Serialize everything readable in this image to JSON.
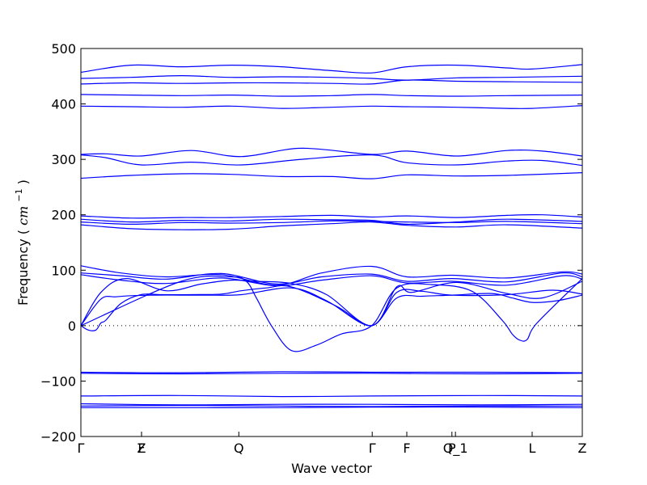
{
  "chart_data": {
    "type": "line",
    "title": "",
    "xlabel": "Wave vector",
    "ylabel": "Frequency ( cm⁻¹ )",
    "ylabel_parts": {
      "text": "Frequency (",
      "unit_base": "cm",
      "unit_sup": "−1",
      "close": ")"
    },
    "ylim": [
      -200,
      500
    ],
    "yticks": [
      -200,
      -100,
      0,
      100,
      200,
      300,
      400,
      500
    ],
    "xlim": [
      0,
      1.0
    ],
    "x_points": [
      {
        "label": "Γ",
        "x": 0.0
      },
      {
        "label": "Z",
        "x": 0.121
      },
      {
        "label": "F",
        "x": 0.121
      },
      {
        "label": "Q",
        "x": 0.315
      },
      {
        "label": "Γ",
        "x": 0.581
      },
      {
        "label": "F",
        "x": 0.65
      },
      {
        "label": "P",
        "x": 0.74
      },
      {
        "label": "Q_1",
        "x": 0.747
      },
      {
        "label": "L",
        "x": 0.9
      },
      {
        "label": "Z",
        "x": 1.0
      }
    ],
    "zero_line": true,
    "grid": false,
    "line_color": "#0000ff",
    "series": [
      {
        "x": [
          0,
          0.1,
          0.2,
          0.3,
          0.4,
          0.5,
          0.58,
          0.65,
          0.75,
          0.85,
          0.9,
          1.0
        ],
        "values": [
          457,
          470,
          467,
          470,
          467,
          460,
          456,
          467,
          470,
          465,
          463,
          471
        ]
      },
      {
        "x": [
          0,
          0.1,
          0.2,
          0.3,
          0.4,
          0.5,
          0.58,
          0.65,
          0.75,
          0.85,
          1.0
        ],
        "values": [
          446,
          448,
          451,
          448,
          449,
          448,
          446,
          443,
          447,
          448,
          450
        ]
      },
      {
        "x": [
          0,
          0.1,
          0.2,
          0.3,
          0.4,
          0.5,
          0.58,
          0.65,
          0.75,
          0.85,
          1.0
        ],
        "values": [
          436,
          438,
          437,
          438,
          438,
          437,
          436,
          443,
          441,
          440,
          439
        ]
      },
      {
        "x": [
          0,
          0.1,
          0.2,
          0.3,
          0.4,
          0.5,
          0.58,
          0.65,
          0.75,
          0.85,
          1.0
        ],
        "values": [
          417,
          416,
          415,
          416,
          414,
          415,
          417,
          415,
          414,
          415,
          416
        ]
      },
      {
        "x": [
          0,
          0.1,
          0.2,
          0.3,
          0.4,
          0.5,
          0.58,
          0.65,
          0.75,
          0.85,
          0.9,
          1.0
        ],
        "values": [
          396,
          395,
          394,
          396,
          392,
          394,
          396,
          395,
          394,
          392,
          392,
          397
        ]
      },
      {
        "x": [
          0,
          0.05,
          0.12,
          0.22,
          0.32,
          0.44,
          0.58,
          0.65,
          0.75,
          0.85,
          0.92,
          1.0
        ],
        "values": [
          309,
          310,
          306,
          316,
          305,
          320,
          309,
          315,
          306,
          316,
          315,
          306
        ]
      },
      {
        "x": [
          0,
          0.05,
          0.12,
          0.22,
          0.32,
          0.44,
          0.58,
          0.65,
          0.75,
          0.85,
          0.92,
          1.0
        ],
        "values": [
          308,
          303,
          290,
          295,
          290,
          300,
          308,
          294,
          290,
          297,
          298,
          289
        ]
      },
      {
        "x": [
          0,
          0.1,
          0.2,
          0.3,
          0.4,
          0.5,
          0.58,
          0.65,
          0.75,
          0.85,
          1.0
        ],
        "values": [
          266,
          271,
          274,
          273,
          269,
          269,
          265,
          272,
          270,
          271,
          276
        ]
      },
      {
        "x": [
          0,
          0.1,
          0.2,
          0.3,
          0.4,
          0.5,
          0.58,
          0.65,
          0.75,
          0.85,
          0.92,
          1.0
        ],
        "values": [
          198,
          194,
          195,
          195,
          197,
          199,
          196,
          198,
          195,
          199,
          200,
          196
        ]
      },
      {
        "x": [
          0,
          0.1,
          0.2,
          0.3,
          0.4,
          0.5,
          0.58,
          0.65,
          0.75,
          0.85,
          1.0
        ],
        "values": [
          192,
          187,
          190,
          189,
          192,
          191,
          190,
          183,
          187,
          192,
          188
        ]
      },
      {
        "x": [
          0,
          0.1,
          0.2,
          0.3,
          0.4,
          0.5,
          0.58,
          0.65,
          0.75,
          0.85,
          1.0
        ],
        "values": [
          187,
          183,
          186,
          185,
          186,
          189,
          188,
          187,
          186,
          188,
          184
        ]
      },
      {
        "x": [
          0,
          0.1,
          0.2,
          0.3,
          0.4,
          0.5,
          0.58,
          0.65,
          0.75,
          0.85,
          1.0
        ],
        "values": [
          182,
          175,
          173,
          174,
          180,
          184,
          187,
          181,
          178,
          182,
          176
        ]
      },
      {
        "x": [
          0,
          0.08,
          0.17,
          0.28,
          0.39,
          0.48,
          0.58,
          0.65,
          0.74,
          0.85,
          0.96,
          1.0
        ],
        "values": [
          108,
          95,
          88,
          92,
          73,
          95,
          107,
          88,
          91,
          86,
          97,
          93
        ]
      },
      {
        "x": [
          0,
          0.08,
          0.17,
          0.28,
          0.39,
          0.48,
          0.58,
          0.65,
          0.74,
          0.85,
          0.96,
          1.0
        ],
        "values": [
          95,
          90,
          84,
          94,
          75,
          88,
          93,
          80,
          85,
          79,
          95,
          88
        ]
      },
      {
        "x": [
          0,
          0.08,
          0.17,
          0.28,
          0.39,
          0.48,
          0.58,
          0.65,
          0.74,
          0.85,
          0.96,
          1.0
        ],
        "values": [
          92,
          82,
          76,
          86,
          72,
          82,
          90,
          77,
          80,
          73,
          90,
          84
        ]
      },
      {
        "x": [
          0,
          0.04,
          0.09,
          0.17,
          0.24,
          0.3,
          0.35,
          0.42,
          0.49,
          0.58,
          0.63,
          0.66,
          0.75,
          0.85,
          0.92,
          1.0
        ],
        "values": [
          0,
          60,
          85,
          63,
          75,
          82,
          80,
          76,
          56,
          0,
          70,
          60,
          78,
          58,
          50,
          80
        ]
      },
      {
        "x": [
          0,
          0.04,
          0.07,
          0.1,
          0.15,
          0.2,
          0.25,
          0.32,
          0.42,
          0.49,
          0.58,
          0.63,
          0.68,
          0.74,
          0.85,
          0.94,
          1.0
        ],
        "values": [
          0,
          48,
          52,
          54,
          55,
          55,
          55,
          56,
          68,
          45,
          0,
          60,
          62,
          55,
          56,
          64,
          57
        ]
      },
      {
        "x": [
          0,
          0.015,
          0.03,
          0.04,
          0.05,
          0.08,
          0.12,
          0.16,
          0.22,
          0.28,
          0.32,
          0.37,
          0.42,
          0.51,
          0.58,
          0.63,
          0.68,
          0.74,
          0.82,
          0.86,
          0.9,
          0.95,
          1.0
        ],
        "values": [
          0,
          -8,
          -8,
          5,
          10,
          40,
          56,
          56,
          56,
          57,
          63,
          68,
          70,
          35,
          0,
          50,
          53,
          55,
          58,
          50,
          42,
          45,
          55
        ]
      },
      {
        "x": [
          0,
          0.2,
          0.3,
          0.33,
          0.35,
          0.38,
          0.42,
          0.47,
          0.52,
          0.58,
          0.63,
          0.7,
          0.78,
          0.84,
          0.86,
          0.875,
          0.89,
          0.91,
          1.0
        ],
        "values": [
          0,
          80,
          88,
          80,
          50,
          0,
          -45,
          -35,
          -15,
          0,
          68,
          74,
          62,
          10,
          -15,
          -26,
          -25,
          5,
          85
        ]
      },
      {
        "x": [
          0,
          0.2,
          0.4,
          0.58,
          0.8,
          1.0
        ],
        "values": [
          -84,
          -85,
          -83,
          -84,
          -84,
          -85
        ]
      },
      {
        "x": [
          0,
          0.2,
          0.4,
          0.58,
          0.8,
          1.0
        ],
        "values": [
          -86,
          -87,
          -86,
          -86,
          -87,
          -86
        ]
      },
      {
        "x": [
          0,
          0.2,
          0.4,
          0.58,
          0.8,
          1.0
        ],
        "values": [
          -127,
          -126,
          -128,
          -127,
          -126,
          -127
        ]
      },
      {
        "x": [
          0,
          0.2,
          0.4,
          0.58,
          0.8,
          1.0
        ],
        "values": [
          -141,
          -143,
          -142,
          -142,
          -143,
          -142
        ]
      },
      {
        "x": [
          0,
          0.2,
          0.4,
          0.58,
          0.8,
          1.0
        ],
        "values": [
          -145,
          -144,
          -145,
          -146,
          -145,
          -145
        ]
      },
      {
        "x": [
          0,
          0.2,
          0.4,
          0.58,
          0.8,
          1.0
        ],
        "values": [
          -148,
          -148,
          -148,
          -147,
          -147,
          -148
        ]
      }
    ]
  }
}
